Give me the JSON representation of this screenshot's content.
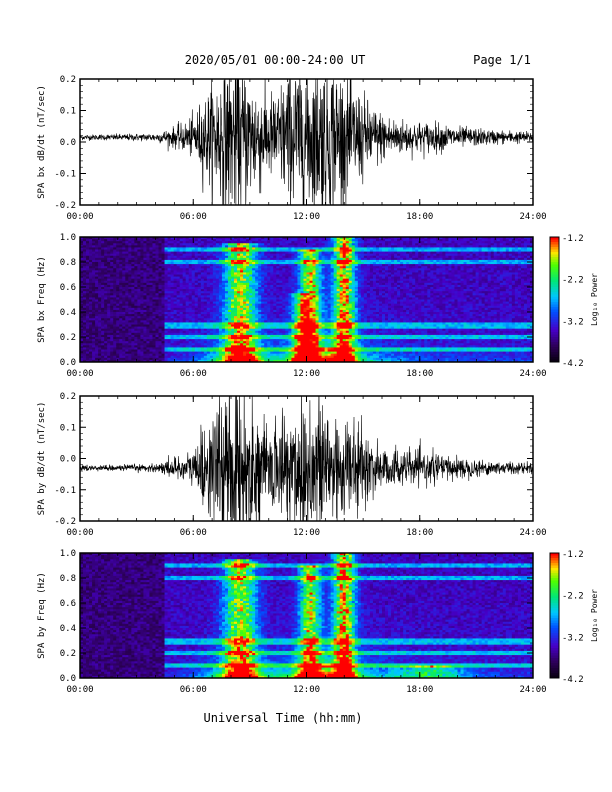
{
  "header": {
    "title": "2020/05/01  00:00-24:00 UT",
    "page": "Page 1/1"
  },
  "footer": {
    "xlabel": "Universal Time (hh:mm)"
  },
  "chart_data": [
    {
      "type": "line",
      "ylabel": "SPA bx dB/dt (nT/sec)",
      "ylim": [
        -0.2,
        0.2
      ],
      "yticks": [
        "0.2",
        "0.1",
        "0.0",
        "-0.1",
        "-0.2"
      ],
      "xlim": [
        "00:00",
        "24:00"
      ],
      "xticks": [
        "00:00",
        "06:00",
        "12:00",
        "18:00",
        "24:00"
      ],
      "baseline": 0.015,
      "envelope": {
        "x": [
          0,
          1,
          2,
          3,
          4,
          4.5,
          5,
          5.5,
          6,
          6.5,
          7,
          7.5,
          8,
          8.5,
          9,
          9.5,
          10,
          10.5,
          11,
          11.5,
          12,
          12.5,
          13,
          13.5,
          14,
          14.5,
          15,
          15.5,
          16,
          16.5,
          17,
          18,
          19,
          20,
          21,
          22,
          23,
          24
        ],
        "amp": [
          0.008,
          0.008,
          0.009,
          0.01,
          0.012,
          0.02,
          0.03,
          0.04,
          0.06,
          0.11,
          0.15,
          0.2,
          0.22,
          0.22,
          0.18,
          0.16,
          0.12,
          0.14,
          0.2,
          0.22,
          0.22,
          0.22,
          0.22,
          0.22,
          0.18,
          0.15,
          0.12,
          0.09,
          0.07,
          0.06,
          0.05,
          0.045,
          0.04,
          0.03,
          0.025,
          0.02,
          0.018,
          0.015
        ]
      }
    },
    {
      "type": "heatmap",
      "ylabel": "SPA bx Freq (Hz)",
      "ylim": [
        0.0,
        1.0
      ],
      "yticks": [
        "1.0",
        "0.8",
        "0.6",
        "0.4",
        "0.2",
        "0.0"
      ],
      "xlim": [
        "00:00",
        "24:00"
      ],
      "xticks": [
        "00:00",
        "06:00",
        "12:00",
        "18:00",
        "24:00"
      ],
      "colorbar": {
        "label": "Log₁₀ Power",
        "range": [
          -4.2,
          -1.2
        ],
        "ticks": [
          "-1.2",
          "-2.2",
          "-3.2",
          "-4.2"
        ]
      },
      "data_start_hour": 4.4,
      "bands_hz": [
        0.1,
        0.2,
        0.28,
        0.31,
        0.8,
        0.9
      ],
      "bursts": [
        {
          "t": 8.5,
          "f": 0.95,
          "w": 1.2,
          "p": 0.7
        },
        {
          "t": 12.2,
          "f": 0.9,
          "w": 0.8,
          "p": 0.75
        },
        {
          "t": 14.0,
          "f": 1.0,
          "w": 0.8,
          "p": 0.85
        },
        {
          "t": 11.8,
          "f": 0.55,
          "w": 0.8,
          "p": 0.5
        }
      ]
    },
    {
      "type": "line",
      "ylabel": "SPA by dB/dt (nT/sec)",
      "ylim": [
        -0.2,
        0.2
      ],
      "yticks": [
        "0.2",
        "0.1",
        "0.0",
        "-0.1",
        "-0.2"
      ],
      "xlim": [
        "00:00",
        "24:00"
      ],
      "xticks": [
        "00:00",
        "06:00",
        "12:00",
        "18:00",
        "24:00"
      ],
      "baseline": -0.03,
      "envelope": {
        "x": [
          0,
          1,
          2,
          3,
          4,
          4.5,
          5,
          5.5,
          6,
          6.5,
          7,
          7.5,
          8,
          8.5,
          9,
          9.5,
          10,
          10.5,
          11,
          11.5,
          12,
          12.5,
          13,
          13.5,
          14,
          14.5,
          15,
          15.5,
          16,
          16.5,
          17,
          18,
          19,
          20,
          21,
          22,
          23,
          24
        ],
        "amp": [
          0.008,
          0.008,
          0.009,
          0.01,
          0.012,
          0.02,
          0.03,
          0.04,
          0.06,
          0.11,
          0.15,
          0.2,
          0.22,
          0.22,
          0.18,
          0.14,
          0.1,
          0.14,
          0.2,
          0.22,
          0.22,
          0.22,
          0.22,
          0.2,
          0.16,
          0.12,
          0.1,
          0.08,
          0.07,
          0.06,
          0.05,
          0.045,
          0.04,
          0.03,
          0.025,
          0.02,
          0.018,
          0.015
        ]
      }
    },
    {
      "type": "heatmap",
      "ylabel": "SPA by Freq (Hz)",
      "ylim": [
        0.0,
        1.0
      ],
      "yticks": [
        "1.0",
        "0.8",
        "0.6",
        "0.4",
        "0.2",
        "0.0"
      ],
      "xlim": [
        "00:00",
        "24:00"
      ],
      "xticks": [
        "00:00",
        "06:00",
        "12:00",
        "18:00",
        "24:00"
      ],
      "colorbar": {
        "label": "Log₁₀ Power",
        "range": [
          -4.2,
          -1.2
        ],
        "ticks": [
          "-1.2",
          "-2.2",
          "-3.2",
          "-4.2"
        ]
      },
      "data_start_hour": 4.4,
      "bands_hz": [
        0.1,
        0.2,
        0.28,
        0.31,
        0.8,
        0.9
      ],
      "bursts": [
        {
          "t": 8.5,
          "f": 0.95,
          "w": 1.2,
          "p": 0.7
        },
        {
          "t": 12.2,
          "f": 0.9,
          "w": 0.8,
          "p": 0.7
        },
        {
          "t": 14.0,
          "f": 1.0,
          "w": 0.8,
          "p": 0.85
        },
        {
          "t": 18.5,
          "f": 0.1,
          "w": 2.5,
          "p": 0.4
        }
      ]
    }
  ]
}
